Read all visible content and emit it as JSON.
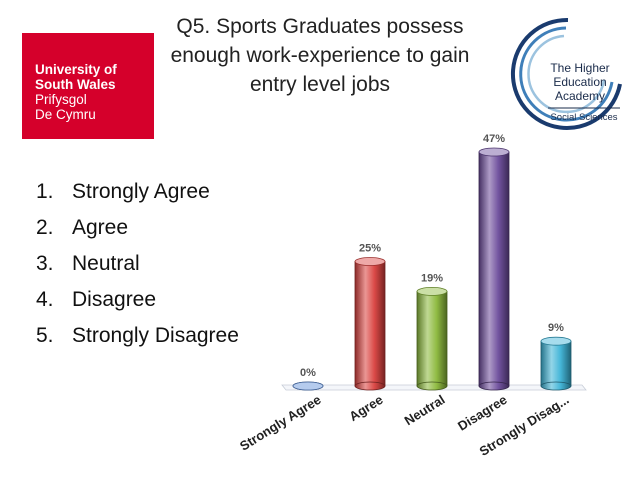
{
  "logos": {
    "left": {
      "lines": [
        "University of",
        "South Wales",
        "Prifysgol",
        "De Cymru"
      ],
      "background": "#d5002b"
    },
    "right": {
      "lines": [
        "The Higher",
        "Education",
        "Academy"
      ],
      "tagline": "Social Sciences"
    }
  },
  "title": [
    "Q5. Sports Graduates possess",
    "enough work-experience to gain",
    "entry level jobs"
  ],
  "answers": [
    {
      "num": "1.",
      "label": "Strongly Agree"
    },
    {
      "num": "2.",
      "label": "Agree"
    },
    {
      "num": "3.",
      "label": "Neutral"
    },
    {
      "num": "4.",
      "label": "Disagree"
    },
    {
      "num": "5.",
      "label": "Strongly Disagree"
    }
  ],
  "chart_data": {
    "type": "bar",
    "categories": [
      "Strongly Agree",
      "Agree",
      "Neutral",
      "Disagree",
      "Strongly Disag..."
    ],
    "values": [
      0,
      25,
      19,
      47,
      9
    ],
    "data_labels": [
      "0%",
      "25%",
      "19%",
      "47%",
      "9%"
    ],
    "unit": "%",
    "ylim": [
      0,
      47
    ],
    "grid": false,
    "legend": "none",
    "colors": [
      "#5b8bd6",
      "#d9403d",
      "#8bb83a",
      "#6b4a9a",
      "#3bb2d6"
    ]
  }
}
